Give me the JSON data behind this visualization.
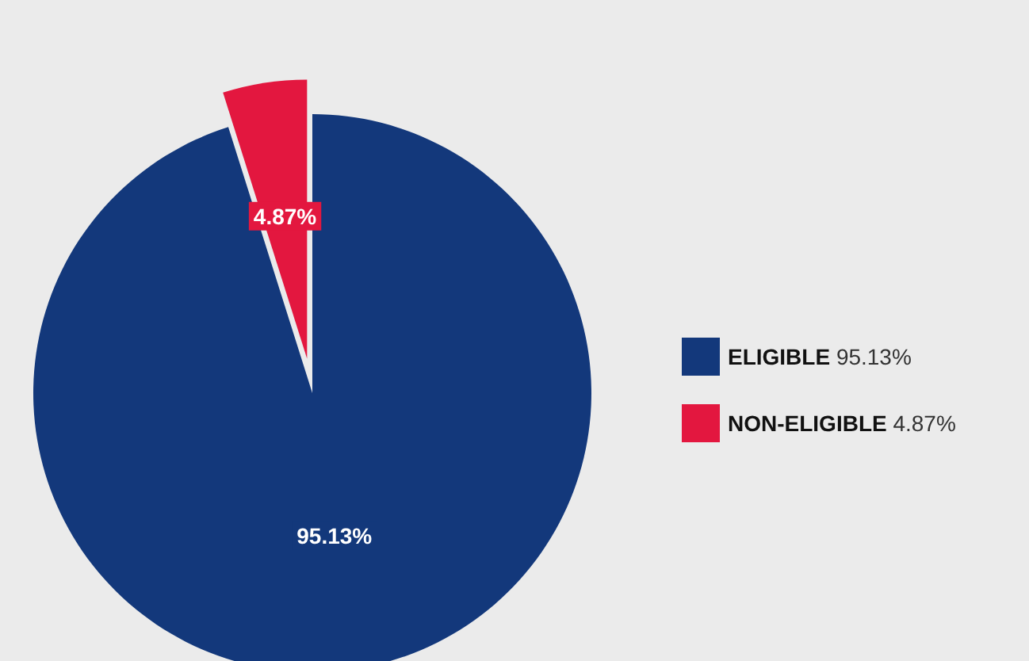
{
  "chart_data": {
    "type": "pie",
    "categories": [
      "ELIGIBLE",
      "NON-ELIGIBLE"
    ],
    "values": [
      95.13,
      4.87
    ],
    "colors": [
      "#13387b",
      "#e3173f"
    ],
    "value_labels": [
      "95.13%",
      "4.87%"
    ],
    "legend": "right"
  }
}
